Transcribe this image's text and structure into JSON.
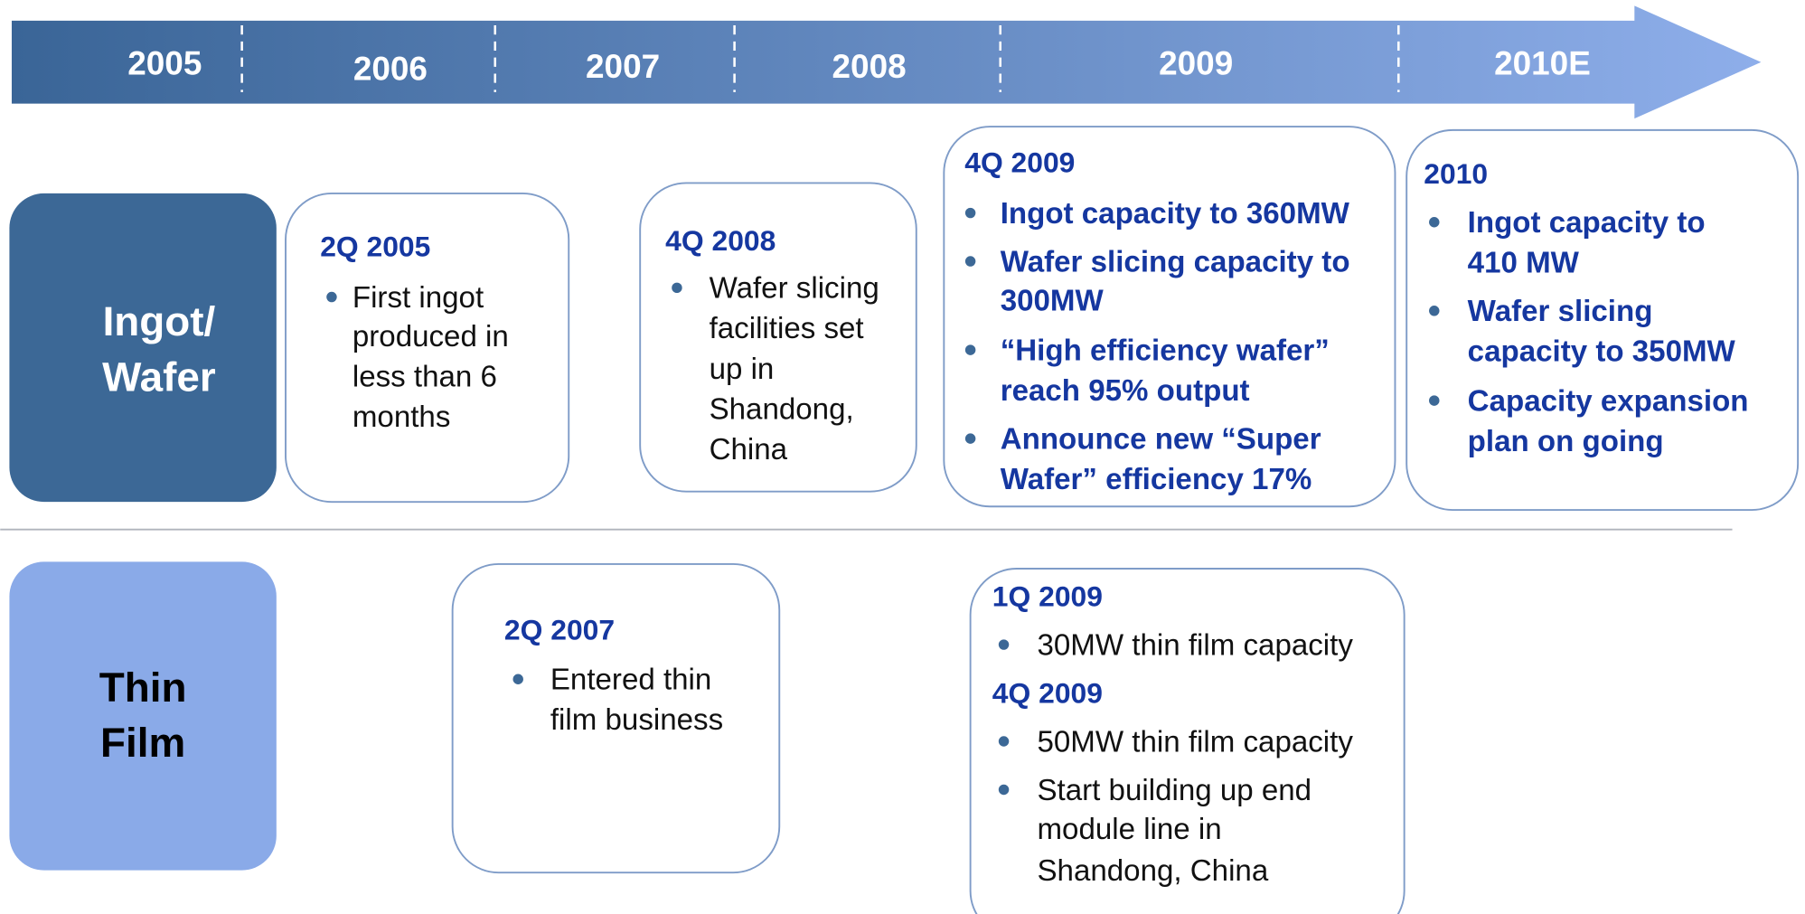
{
  "timeline": {
    "years": [
      "2005",
      "2006",
      "2007",
      "2008",
      "2009",
      "2010E"
    ]
  },
  "rows": [
    {
      "label": [
        "Ingot/",
        "Wafer"
      ]
    },
    {
      "label": [
        "Thin",
        "Film"
      ]
    }
  ],
  "boxes": [
    {
      "sections": [
        {
          "heading": "2Q 2005",
          "bullets": [
            [
              "First ingot",
              "produced in",
              "less than 6",
              "months"
            ]
          ]
        }
      ]
    },
    {
      "sections": [
        {
          "heading": "4Q 2008",
          "bullets": [
            [
              "Wafer slicing",
              "facilities set",
              "up in",
              "Shandong,",
              "China"
            ]
          ]
        }
      ]
    },
    {
      "sections": [
        {
          "heading": "4Q 2009",
          "bullets": [
            [
              "Ingot capacity to 360MW"
            ],
            [
              "Wafer slicing capacity to",
              "300MW"
            ],
            [
              "“High efficiency wafer”",
              "reach 95% output"
            ],
            [
              "Announce new “Super",
              "Wafer” efficiency 17%"
            ]
          ]
        }
      ]
    },
    {
      "sections": [
        {
          "heading": "2010",
          "bullets": [
            [
              "Ingot capacity to",
              "410 MW"
            ],
            [
              "Wafer slicing",
              "capacity to 350MW"
            ],
            [
              "Capacity expansion",
              "plan on going"
            ]
          ]
        }
      ]
    },
    {
      "sections": [
        {
          "heading": "2Q 2007",
          "bullets": [
            [
              "Entered thin",
              "film business"
            ]
          ]
        }
      ]
    },
    {
      "sections": [
        {
          "heading": "1Q 2009",
          "bullets": [
            [
              "30MW thin film capacity"
            ]
          ]
        },
        {
          "heading": "4Q 2009",
          "bullets": [
            [
              "50MW thin film capacity"
            ],
            [
              "Start building up end",
              "module line in",
              "Shandong, China"
            ]
          ]
        }
      ]
    }
  ]
}
